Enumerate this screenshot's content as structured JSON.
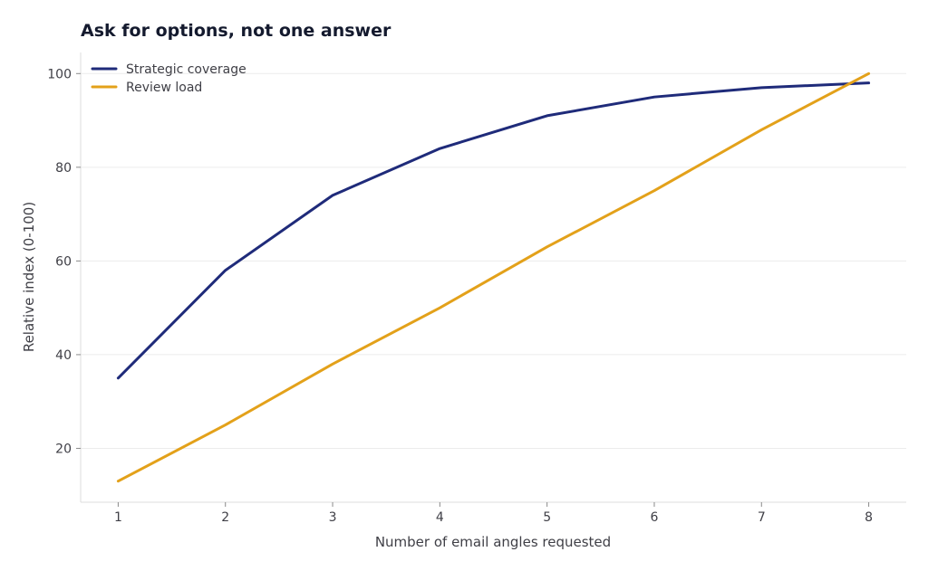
{
  "chart_data": {
    "type": "line",
    "title": "Ask for options, not one answer",
    "xlabel": "Number of email angles requested",
    "ylabel": "Relative index (0-100)",
    "x": [
      1,
      2,
      3,
      4,
      5,
      6,
      7,
      8
    ],
    "xlim": [
      0.65,
      8.35
    ],
    "ylim": [
      8.5,
      104.5
    ],
    "yticks": [
      20,
      40,
      60,
      80,
      100
    ],
    "grid": true,
    "legend_position": "top-left",
    "series": [
      {
        "name": "Strategic coverage",
        "color": "#1f2b7a",
        "values": [
          35,
          58,
          74,
          84,
          91,
          95,
          97,
          98
        ]
      },
      {
        "name": "Review load",
        "color": "#e3a11a",
        "values": [
          13,
          25,
          38,
          50,
          63,
          75,
          88,
          100
        ]
      }
    ]
  }
}
